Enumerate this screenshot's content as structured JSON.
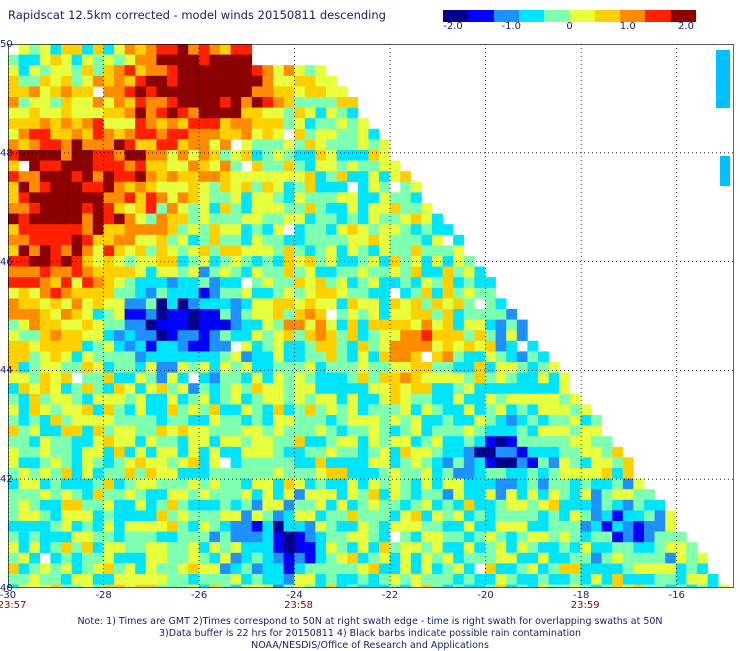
{
  "title": "Rapidscat 12.5km corrected - model winds 20150811 descending",
  "colorbar": {
    "ticks": [
      "-2.0",
      "-1.0",
      "0",
      "1.0",
      "2.0"
    ],
    "tick_values": [
      -2,
      -1,
      0,
      1,
      2
    ],
    "range": [
      -2,
      2
    ],
    "colors": [
      "#00008b",
      "#0000ff",
      "#1e90ff",
      "#00e5ff",
      "#7fffb0",
      "#e8ff40",
      "#ffd000",
      "#ff8c00",
      "#ff2000",
      "#8b0000"
    ]
  },
  "map": {
    "lon_range": [
      -30,
      -14.8
    ],
    "lat_range": [
      40,
      50
    ],
    "x_ticks": [
      "-30",
      "-28",
      "-26",
      "-24",
      "-22",
      "-20",
      "-18",
      "-16"
    ],
    "x_tick_values": [
      -30,
      -28,
      -26,
      -24,
      -22,
      -20,
      -18,
      -16
    ],
    "y_ticks": [
      "40",
      "42",
      "44",
      "46",
      "48",
      "50"
    ],
    "y_tick_values": [
      40,
      42,
      44,
      46,
      48,
      50
    ],
    "gridlines": true,
    "nodata_color": "#ffffff"
  },
  "times": [
    {
      "label": "23:57",
      "lon": -30
    },
    {
      "label": "23:58",
      "lon": -24
    },
    {
      "label": "23:59",
      "lon": -18
    }
  ],
  "notes": [
    "Note: 1) Times are GMT 2)Times correspond to 50N at right swath edge - time is right swath for overlapping swaths at 50N",
    "3)Data buffer is 22 hrs for 20150811 4) Black barbs indicate possible rain contamination",
    "NOAA/NESDIS/Office of Research and Applications"
  ]
}
